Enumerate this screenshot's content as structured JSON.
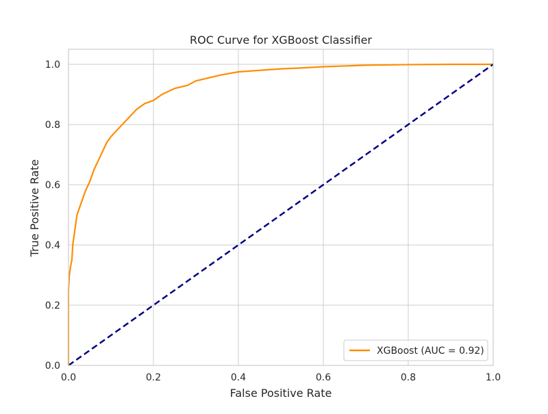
{
  "chart_data": {
    "type": "line",
    "title": "ROC Curve for XGBoost Classifier",
    "xlabel": "False Positive Rate",
    "ylabel": "True Positive Rate",
    "xlim": [
      0.0,
      1.0
    ],
    "ylim": [
      0.0,
      1.05
    ],
    "xticks": [
      0.0,
      0.2,
      0.4,
      0.6,
      0.8,
      1.0
    ],
    "yticks": [
      0.0,
      0.2,
      0.4,
      0.6,
      0.8,
      1.0
    ],
    "xtick_labels": [
      "0.0",
      "0.2",
      "0.4",
      "0.6",
      "0.8",
      "1.0"
    ],
    "ytick_labels": [
      "0.0",
      "0.2",
      "0.4",
      "0.6",
      "0.8",
      "1.0"
    ],
    "grid": true,
    "legend_position": "lower-right",
    "series": [
      {
        "name": "XGBoost (AUC = 0.92)",
        "color": "#ff8c00",
        "style": "solid",
        "x": [
          0.0,
          0.0,
          0.002,
          0.005,
          0.008,
          0.01,
          0.015,
          0.02,
          0.03,
          0.04,
          0.05,
          0.06,
          0.07,
          0.08,
          0.09,
          0.1,
          0.12,
          0.14,
          0.16,
          0.18,
          0.2,
          0.22,
          0.25,
          0.28,
          0.3,
          0.33,
          0.36,
          0.4,
          0.45,
          0.5,
          0.55,
          0.6,
          0.7,
          0.8,
          0.9,
          1.0
        ],
        "y": [
          0.0,
          0.25,
          0.3,
          0.33,
          0.35,
          0.4,
          0.45,
          0.5,
          0.54,
          0.58,
          0.61,
          0.65,
          0.68,
          0.71,
          0.74,
          0.76,
          0.79,
          0.82,
          0.85,
          0.87,
          0.88,
          0.9,
          0.92,
          0.93,
          0.945,
          0.955,
          0.965,
          0.975,
          0.98,
          0.985,
          0.988,
          0.992,
          0.997,
          0.999,
          1.0,
          1.0
        ]
      },
      {
        "name": "",
        "color": "#000080",
        "style": "dashed",
        "x": [
          0.0,
          1.0
        ],
        "y": [
          0.0,
          1.0
        ]
      }
    ],
    "legend": [
      {
        "label": "XGBoost (AUC = 0.92)",
        "color": "#ff8c00"
      }
    ]
  }
}
